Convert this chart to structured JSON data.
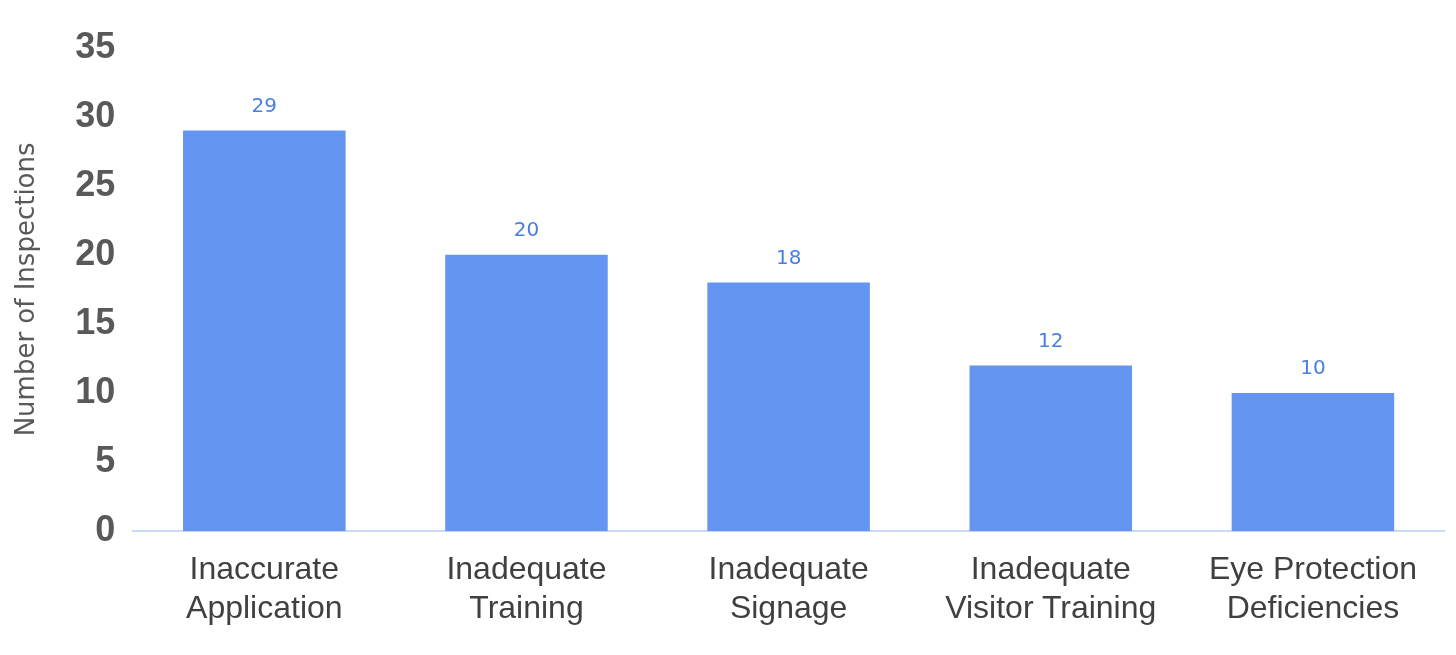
{
  "chart_data": {
    "type": "bar",
    "ylabel": "Number of Inspections",
    "categories": [
      "Inaccurate Application",
      "Inadequate Training",
      "Inadequate Signage",
      "Inadequate Visitor Training",
      "Eye Protection Deficiencies"
    ],
    "values": [
      29,
      20,
      18,
      12,
      10
    ],
    "color": "#6495f0",
    "ylim": [
      0,
      35
    ],
    "yticks": [
      0,
      5,
      10,
      15,
      20,
      25,
      30,
      35
    ],
    "grid": false,
    "legend": false,
    "data_labels": true
  }
}
